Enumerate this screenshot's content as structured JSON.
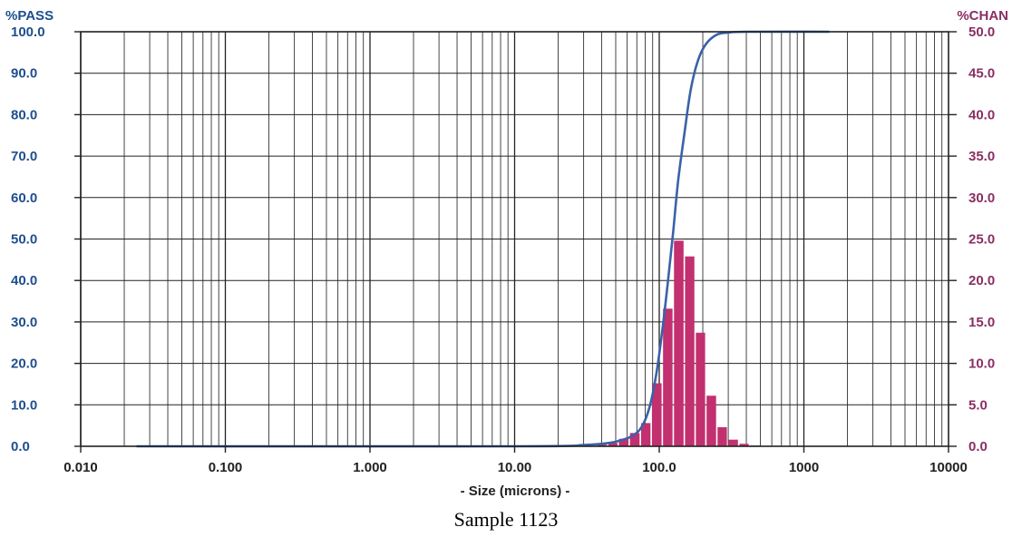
{
  "caption": "Sample 1123",
  "chart_data": {
    "type": "line",
    "title": "",
    "xlabel": "- Size (microns) -",
    "x_scale": "log",
    "xlim": [
      0.01,
      10000
    ],
    "x_tick_labels": [
      "0.010",
      "0.100",
      "1.000",
      "10.00",
      "100.0",
      "1000",
      "10000"
    ],
    "y_left": {
      "label": "%PASS",
      "ylim": [
        0,
        100
      ],
      "tick_labels": [
        "0.0",
        "10.0",
        "20.0",
        "30.0",
        "40.0",
        "50.0",
        "60.0",
        "70.0",
        "80.0",
        "90.0",
        "100.0"
      ]
    },
    "y_right": {
      "label": "%CHAN",
      "ylim": [
        0,
        50
      ],
      "tick_labels": [
        "0.0",
        "5.0",
        "10.0",
        "15.0",
        "20.0",
        "25.0",
        "30.0",
        "35.0",
        "40.0",
        "45.0",
        "50.0"
      ]
    },
    "grid": true,
    "series": [
      {
        "type": "line",
        "axis": "left",
        "color": "#3a62a8",
        "points": [
          [
            0.0243,
            0
          ],
          [
            11,
            0
          ],
          [
            30,
            0.3
          ],
          [
            45,
            0.8
          ],
          [
            55,
            1.5
          ],
          [
            65,
            2.5
          ],
          [
            75,
            4.5
          ],
          [
            85,
            9
          ],
          [
            95,
            17
          ],
          [
            105,
            28
          ],
          [
            115,
            40
          ],
          [
            125,
            52
          ],
          [
            135,
            64
          ],
          [
            150,
            76
          ],
          [
            165,
            86
          ],
          [
            185,
            93
          ],
          [
            210,
            97
          ],
          [
            250,
            99.3
          ],
          [
            300,
            99.8
          ],
          [
            400,
            100
          ],
          [
            1500,
            100
          ]
        ]
      },
      {
        "type": "histogram",
        "axis": "right",
        "color": "#c2306f",
        "bins": [
          {
            "lo": 37,
            "hi": 44,
            "value": 0.2
          },
          {
            "lo": 44,
            "hi": 52,
            "value": 0.4
          },
          {
            "lo": 52,
            "hi": 62,
            "value": 0.9
          },
          {
            "lo": 62,
            "hi": 74,
            "value": 1.6
          },
          {
            "lo": 74,
            "hi": 88,
            "value": 2.8
          },
          {
            "lo": 88,
            "hi": 105,
            "value": 7.6
          },
          {
            "lo": 105,
            "hi": 125,
            "value": 16.6
          },
          {
            "lo": 125,
            "hi": 149,
            "value": 24.8
          },
          {
            "lo": 149,
            "hi": 177,
            "value": 22.9
          },
          {
            "lo": 177,
            "hi": 210,
            "value": 13.7
          },
          {
            "lo": 210,
            "hi": 250,
            "value": 6.1
          },
          {
            "lo": 250,
            "hi": 297,
            "value": 2.3
          },
          {
            "lo": 297,
            "hi": 354,
            "value": 0.8
          },
          {
            "lo": 354,
            "hi": 420,
            "value": 0.3
          },
          {
            "lo": 420,
            "hi": 500,
            "value": 0.1
          }
        ]
      }
    ]
  }
}
